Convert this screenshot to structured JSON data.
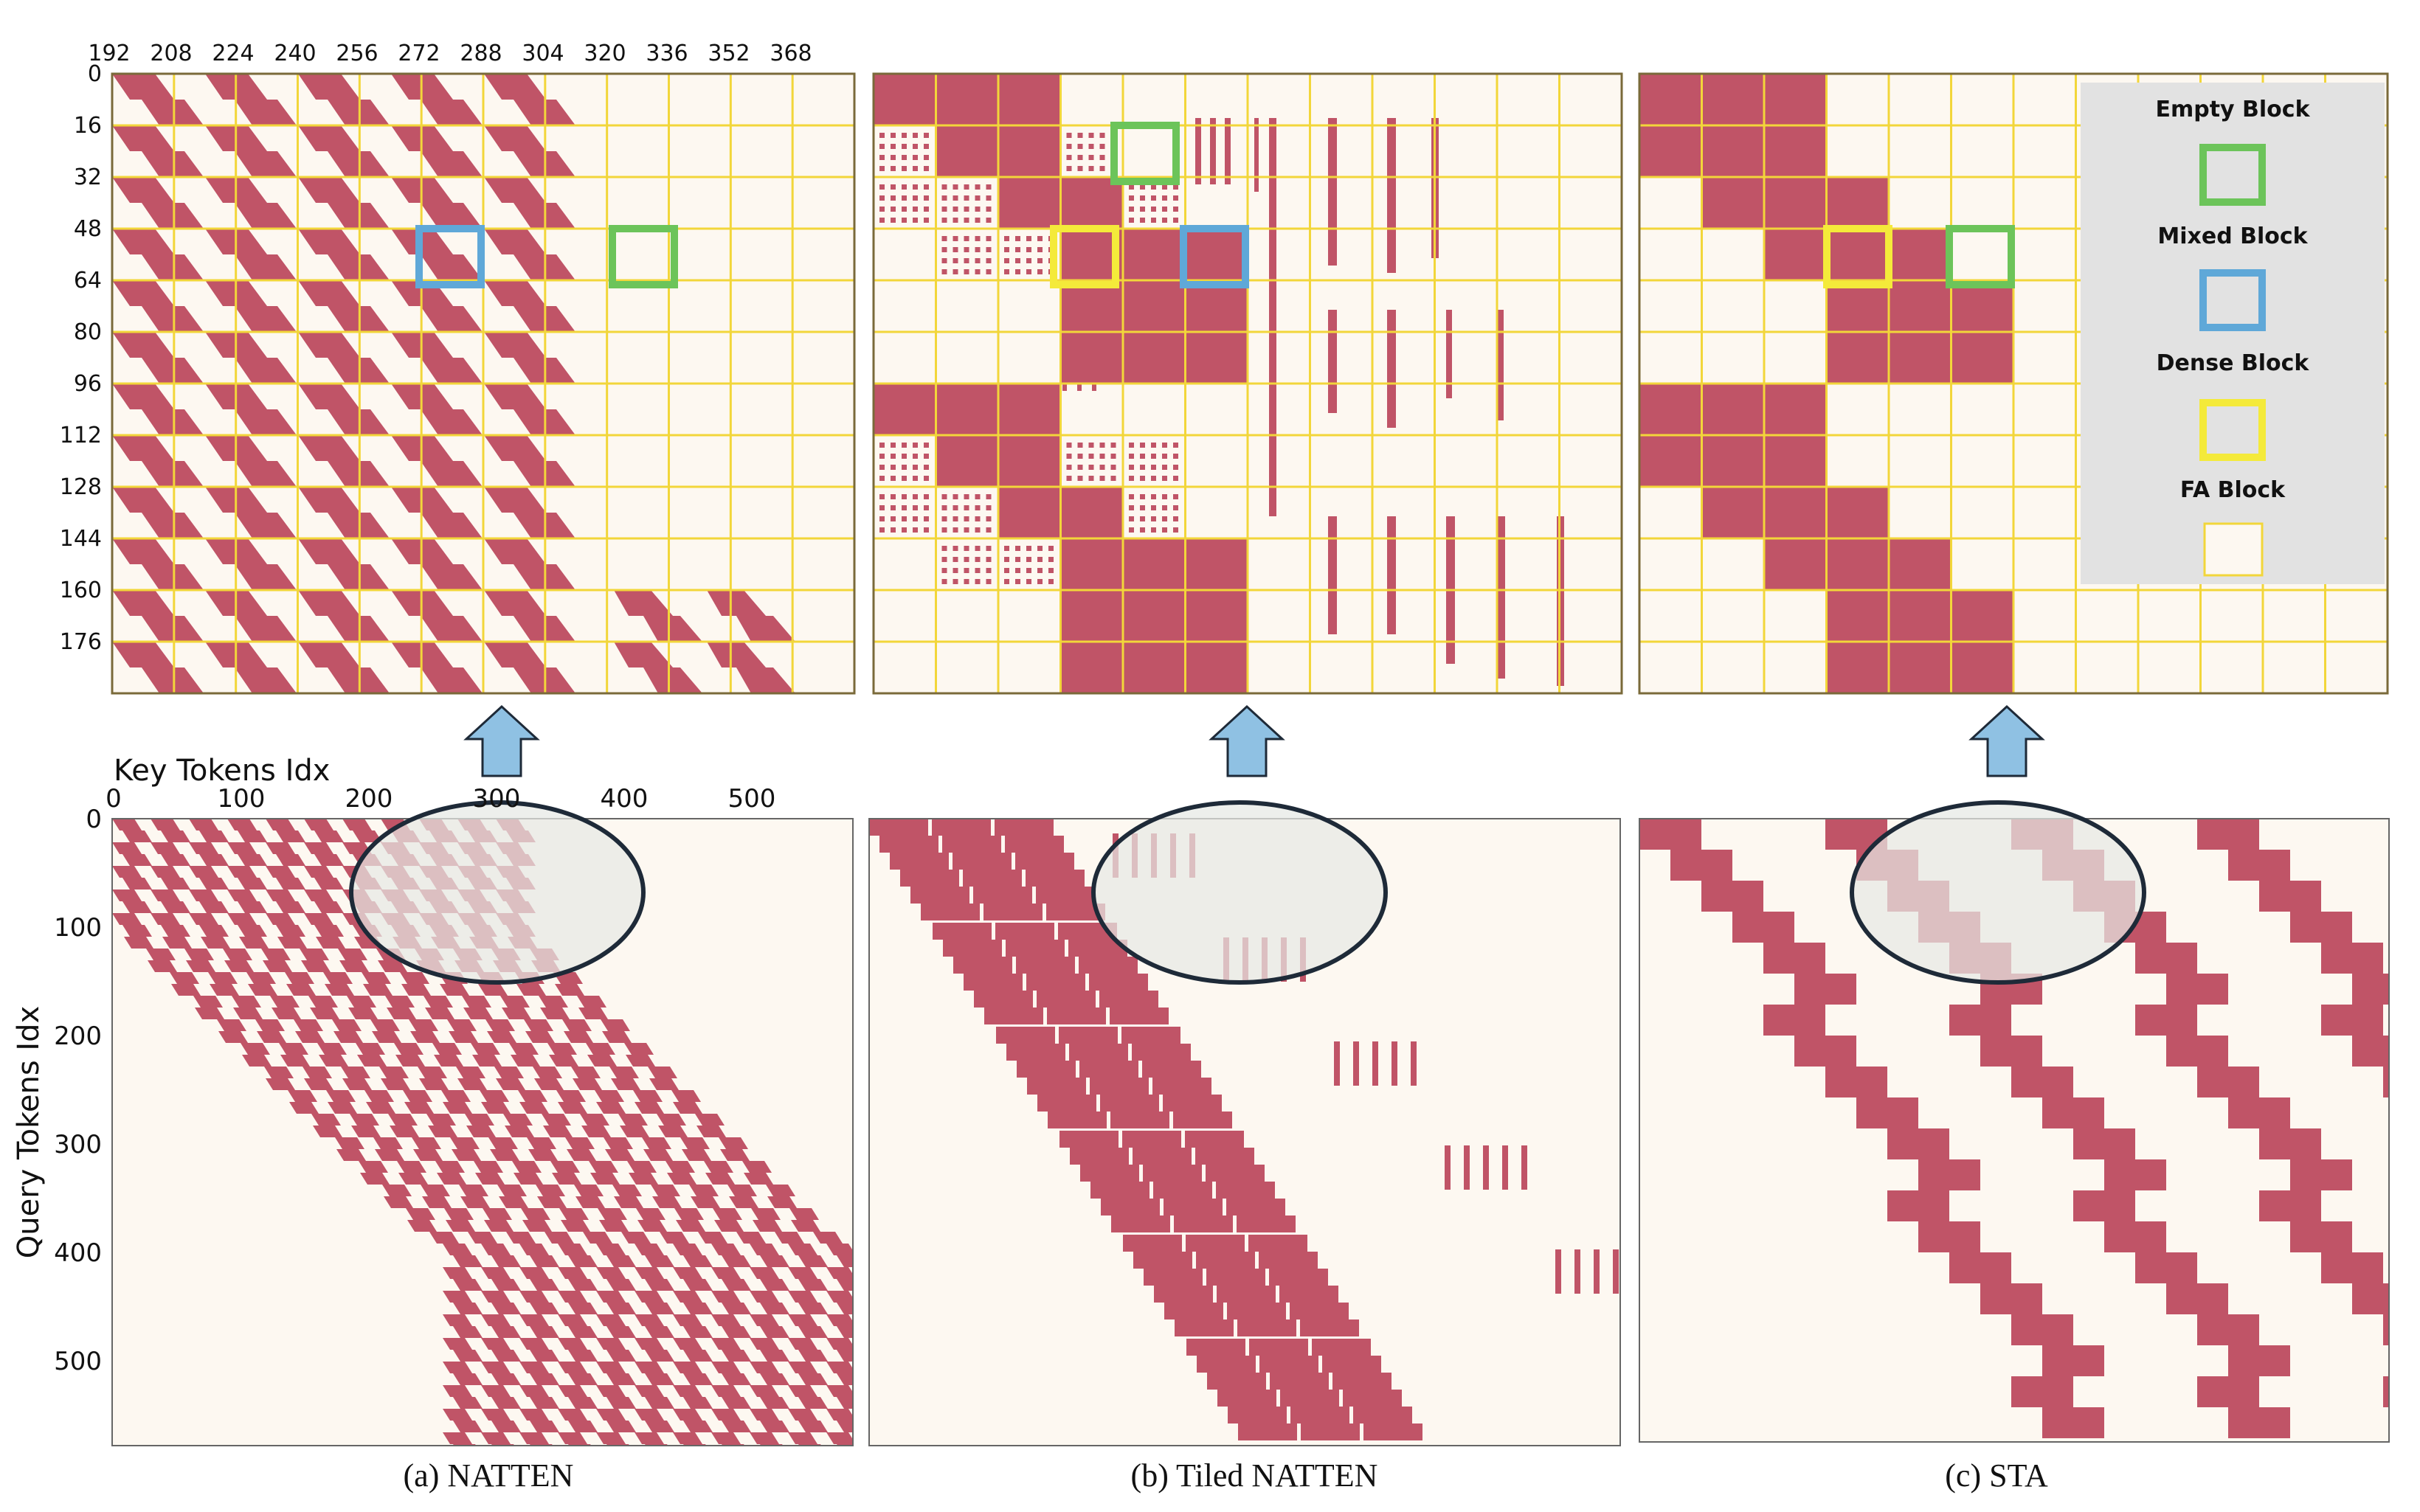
{
  "colors": {
    "mask": "#c05467",
    "background": "#fdf8f1",
    "grid": "#f2d63a",
    "frame": "#7a6a3a",
    "empty_block": "#6cc45a",
    "mixed_block": "#5fa8d8",
    "dense_block": "#f4ea3a",
    "arrow": "#8fc1e3",
    "ellipse_fill": "#e6e9e5",
    "ellipse_stroke": "#1e2a38",
    "legend_bg": "#e2e2e2"
  },
  "zoom_axes": {
    "x_ticks": [
      "192",
      "208",
      "224",
      "240",
      "256",
      "272",
      "288",
      "304",
      "320",
      "336",
      "352",
      "368"
    ],
    "y_ticks": [
      "0",
      "16",
      "32",
      "48",
      "64",
      "80",
      "96",
      "112",
      "128",
      "144",
      "160",
      "176"
    ]
  },
  "full_axes": {
    "xlabel": "Key Tokens Idx",
    "ylabel": "Query Tokens Idx",
    "x_ticks": [
      "0",
      "100",
      "200",
      "300",
      "400",
      "500"
    ],
    "y_ticks": [
      "0",
      "100",
      "200",
      "300",
      "400",
      "500"
    ]
  },
  "legend": {
    "items": [
      {
        "label": "Empty Block",
        "color": "#6cc45a"
      },
      {
        "label": "Mixed Block",
        "color": "#5fa8d8"
      },
      {
        "label": "Dense Block",
        "color": "#f4ea3a"
      },
      {
        "label": "FA Block",
        "color": "#f2d63a"
      }
    ]
  },
  "panels": [
    {
      "id": "natten",
      "caption": "(a) NATTEN"
    },
    {
      "id": "tiled",
      "caption": "(b) Tiled NATTEN"
    },
    {
      "id": "sta",
      "caption": "(c) STA"
    }
  ]
}
